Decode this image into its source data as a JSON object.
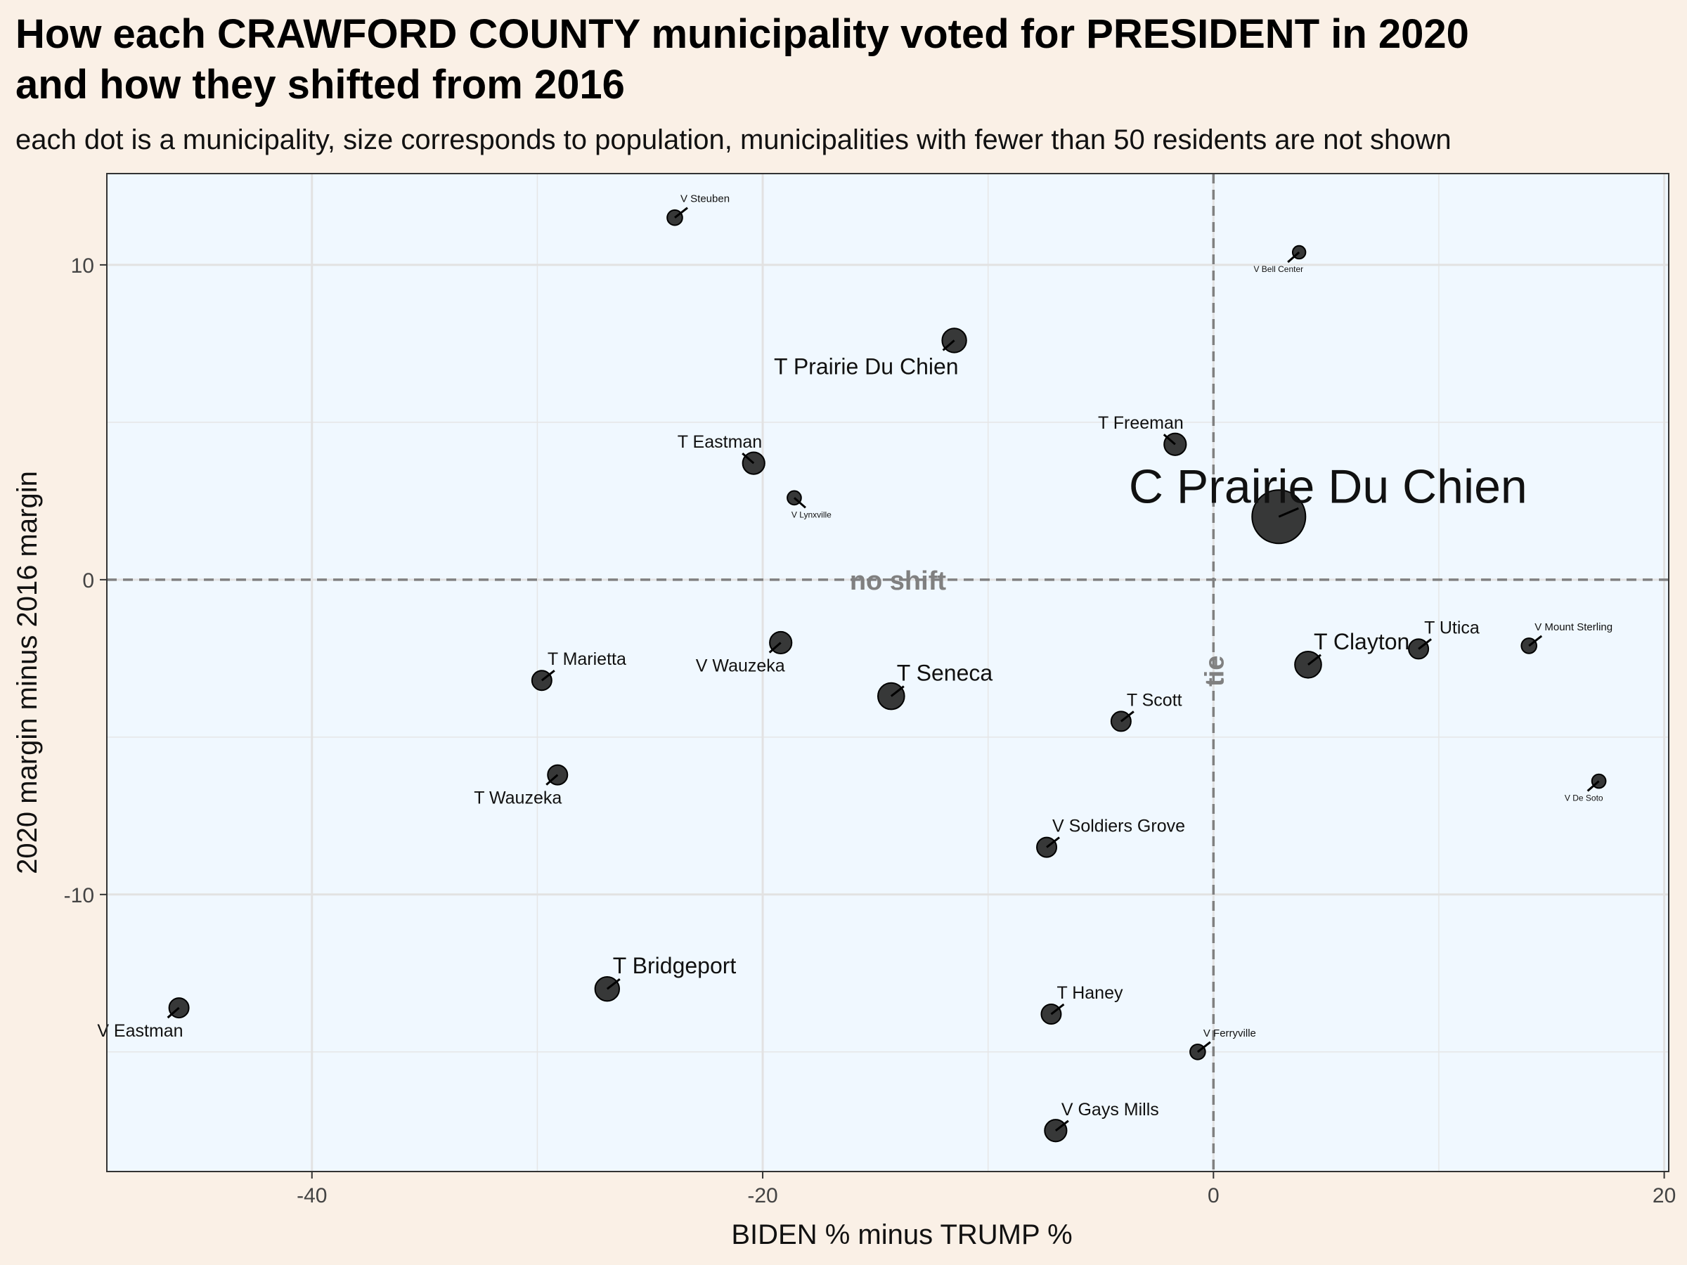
{
  "chart_data": {
    "type": "scatter",
    "title": "How each CRAWFORD COUNTY municipality voted for PRESIDENT in 2020 and how they shifted from 2016",
    "title_lines": [
      "How each CRAWFORD COUNTY municipality voted for PRESIDENT in 2020",
      "and how they shifted from 2016"
    ],
    "subtitle": "each dot is a municipality, size corresponds to population, municipalities with fewer than 50 residents are not shown",
    "xlabel": "BIDEN % minus TRUMP %",
    "ylabel": "2020 margin minus 2016 margin",
    "xlim": [
      -49.1,
      20.2
    ],
    "ylim": [
      -18.8,
      12.9
    ],
    "x_ticks": [
      -40,
      -20,
      0,
      20
    ],
    "y_ticks": [
      -10,
      0,
      10
    ],
    "grid": true,
    "reference_lines": {
      "horizontal": {
        "y": 0,
        "label": "no shift"
      },
      "vertical": {
        "x": 0,
        "label": "tie"
      }
    },
    "colors": {
      "panel_background": "#f0f8ff",
      "page_background": "#faf0e6",
      "point": "#222222",
      "reference_line": "#808080"
    },
    "points": [
      {
        "name": "V Steuben",
        "x": -23.9,
        "y": 11.5,
        "size": 1.5,
        "label_pos": "above-right"
      },
      {
        "name": "V Bell Center",
        "x": 3.8,
        "y": 10.4,
        "size": 1,
        "label_pos": "below-left"
      },
      {
        "name": "T Prairie Du Chien",
        "x": -11.5,
        "y": 7.6,
        "size": 3.5,
        "label_pos": "below-left"
      },
      {
        "name": "T Freeman",
        "x": -1.7,
        "y": 4.3,
        "size": 3,
        "label_pos": "above-left"
      },
      {
        "name": "T Eastman",
        "x": -20.4,
        "y": 3.7,
        "size": 3,
        "label_pos": "above-left"
      },
      {
        "name": "V Lynxville",
        "x": -18.6,
        "y": 2.6,
        "size": 1.2,
        "label_pos": "below-right"
      },
      {
        "name": "C Prairie Du Chien",
        "x": 2.9,
        "y": 2.0,
        "size": 10,
        "label_pos": "above-right-large"
      },
      {
        "name": "V Wauzeka",
        "x": -19.2,
        "y": -2.0,
        "size": 3,
        "label_pos": "below-left"
      },
      {
        "name": "T Marietta",
        "x": -29.8,
        "y": -3.2,
        "size": 2.5,
        "label_pos": "above-right"
      },
      {
        "name": "T Seneca",
        "x": -14.3,
        "y": -3.7,
        "size": 4,
        "label_pos": "above-right"
      },
      {
        "name": "T Clayton",
        "x": 4.2,
        "y": -2.7,
        "size": 4,
        "label_pos": "above-right"
      },
      {
        "name": "T Utica",
        "x": 9.1,
        "y": -2.2,
        "size": 2.5,
        "label_pos": "above-right"
      },
      {
        "name": "V Mount Sterling",
        "x": 14.0,
        "y": -2.1,
        "size": 1.5,
        "label_pos": "above-right"
      },
      {
        "name": "T Scott",
        "x": -4.1,
        "y": -4.5,
        "size": 2.5,
        "label_pos": "above-right"
      },
      {
        "name": "T Wauzeka",
        "x": -29.1,
        "y": -6.2,
        "size": 2.5,
        "label_pos": "below-left"
      },
      {
        "name": "V De Soto",
        "x": 17.1,
        "y": -6.4,
        "size": 1.2,
        "label_pos": "below-left"
      },
      {
        "name": "V Soldiers Grove",
        "x": -7.4,
        "y": -8.5,
        "size": 2.5,
        "label_pos": "above-right"
      },
      {
        "name": "V Eastman",
        "x": -45.9,
        "y": -13.6,
        "size": 2.5,
        "label_pos": "below-left"
      },
      {
        "name": "T Bridgeport",
        "x": -26.9,
        "y": -13.0,
        "size": 3.5,
        "label_pos": "above-right"
      },
      {
        "name": "T Haney",
        "x": -7.2,
        "y": -13.8,
        "size": 2.5,
        "label_pos": "above-right"
      },
      {
        "name": "V Ferryville",
        "x": -0.7,
        "y": -15.0,
        "size": 1.5,
        "label_pos": "above-right"
      },
      {
        "name": "V Gays Mills",
        "x": -7.0,
        "y": -17.5,
        "size": 3,
        "label_pos": "above-right"
      }
    ]
  }
}
